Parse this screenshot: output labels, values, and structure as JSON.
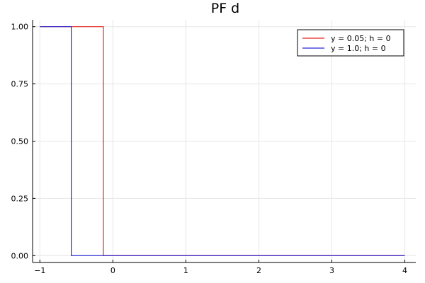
{
  "chart_data": {
    "type": "line",
    "title": "PF d",
    "xlabel": "",
    "ylabel": "",
    "xlim": [
      -1.1,
      4.15
    ],
    "ylim": [
      -0.03,
      1.03
    ],
    "xticks": [
      -1,
      0,
      1,
      2,
      3,
      4
    ],
    "xtick_labels": [
      "−1",
      "0",
      "1",
      "2",
      "3",
      "4"
    ],
    "yticks": [
      0,
      0.25,
      0.5,
      0.75,
      1.0
    ],
    "ytick_labels": [
      "0.00",
      "0.25",
      "0.50",
      "0.75",
      "1.00"
    ],
    "grid": true,
    "legend_position": "top-right",
    "series": [
      {
        "name": "y = 0.05; h = 0",
        "color": "#e8251e",
        "x": [
          -1,
          -0.13,
          -0.13,
          4
        ],
        "y": [
          1,
          1,
          0,
          0
        ]
      },
      {
        "name": "y = 1.0; h = 0",
        "color": "#2626d9",
        "x": [
          -1,
          -0.57,
          -0.57,
          4
        ],
        "y": [
          1,
          1,
          0,
          0
        ]
      }
    ]
  }
}
